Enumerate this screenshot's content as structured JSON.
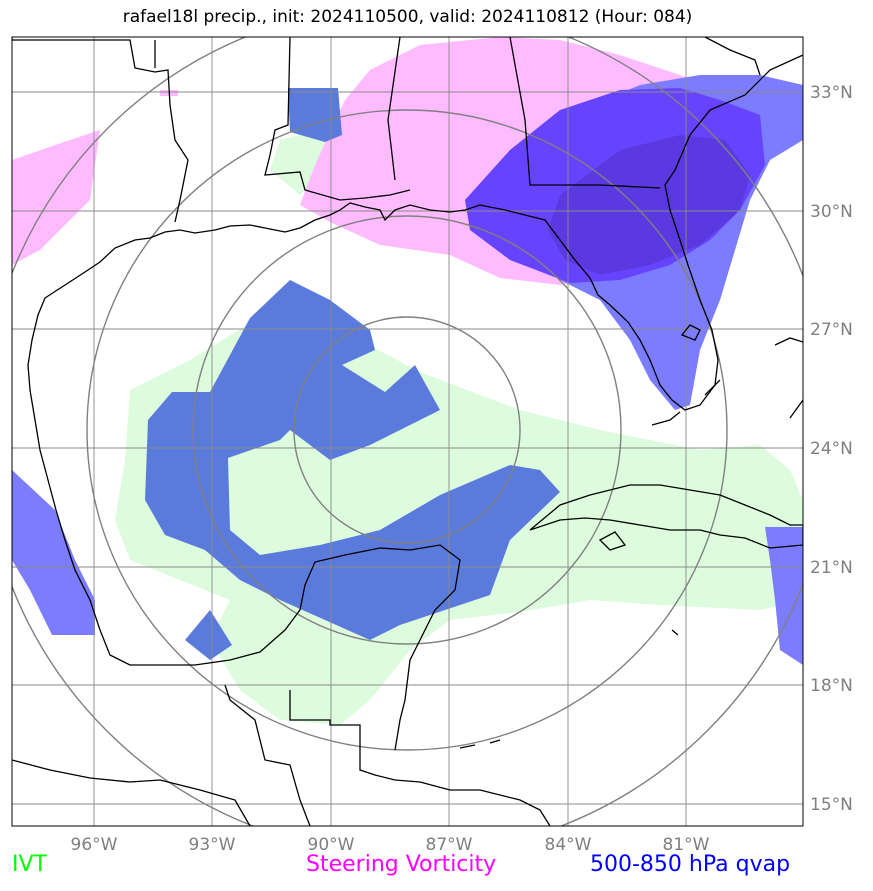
{
  "title": "rafael18l precip., init: 2024110500, valid: 2024110812 (Hour: 084)",
  "colors": {
    "ivt": "#00ff00",
    "steering_vorticity": "#ff00ff",
    "qvap": "#0000ff"
  },
  "legend": {
    "ivt": "IVT",
    "steering_vorticity": "Steering Vorticity",
    "qvap": "500-850 hPa qvap"
  },
  "lon_ticks": [
    "96°W",
    "93°W",
    "90°W",
    "87°W",
    "84°W",
    "81°W"
  ],
  "lat_ticks": [
    "33°N",
    "30°N",
    "27°N",
    "24°N",
    "21°N",
    "18°N",
    "15°N"
  ]
}
